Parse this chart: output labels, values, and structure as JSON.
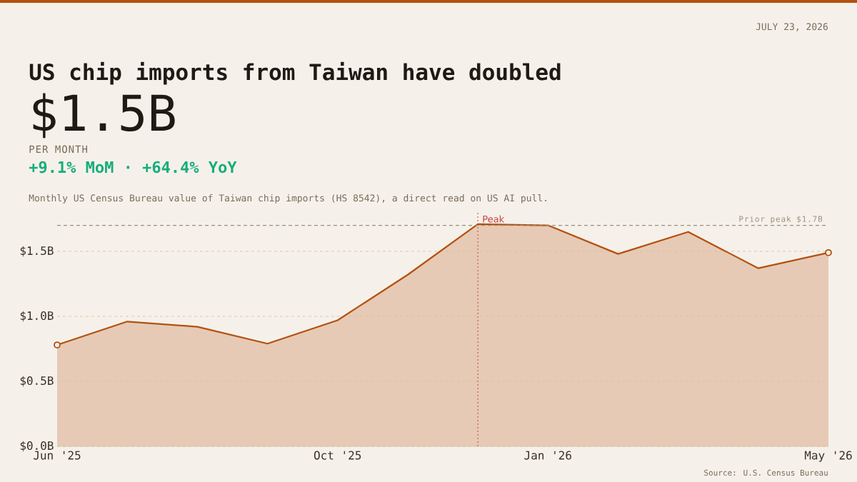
{
  "chart_data": {
    "type": "area",
    "title": "US chip imports from Taiwan have doubled",
    "subtitle": "Monthly US Census Bureau value of Taiwan chip imports (HS 8542), a direct read on US AI pull.",
    "annotations": [
      "JULY 23, 2026",
      "$1.5B",
      "PER MONTH",
      "+9.1% MoM · +64.4% YoY",
      "Source: U.S. Census Bureau"
    ],
    "x": [
      "2025-06",
      "2025-07",
      "2025-08",
      "2025-09",
      "2025-10",
      "2025-11",
      "2025-12",
      "2026-01",
      "2026-02",
      "2026-03",
      "2026-04",
      "2026-05"
    ],
    "series": [
      {
        "color": "#b5500f",
        "values": [
          0.78,
          0.96,
          0.92,
          0.79,
          0.97,
          1.32,
          1.71,
          1.7,
          1.48,
          1.65,
          1.37,
          1.49
        ]
      },
      {
        "type": "scatter",
        "color": "#b5500f",
        "x": [
          "2025-06",
          "2026-05"
        ],
        "values": [
          0.78,
          1.49
        ],
        "marker": "circle"
      }
    ],
    "xlim": [
      "2025-06",
      "2026-05"
    ],
    "xticks": [
      {
        "value": "2025-06",
        "label": "Jun '25"
      },
      {
        "value": "2025-10",
        "label": "Oct '25"
      },
      {
        "value": "2026-01",
        "label": "Jan '26"
      },
      {
        "value": "2026-05",
        "label": "May '26"
      }
    ],
    "ylim": [
      0,
      1.8
    ],
    "yticks": [
      {
        "value": 0,
        "label": "$0.0B"
      },
      {
        "value": 0.5,
        "label": "$0.5B"
      },
      {
        "value": 1,
        "label": "$1.0B"
      },
      {
        "value": 1.5,
        "label": "$1.5B"
      }
    ],
    "grid": "y",
    "ref_lines": [
      {
        "axis": "y",
        "value": 1.7,
        "label": "Prior peak $1.7B",
        "color": "#9c8f7d",
        "line_style": "dashed"
      },
      {
        "axis": "x",
        "value": "2025-12",
        "label": "Peak",
        "color": "#c8433a",
        "line_style": "dotted"
      }
    ]
  }
}
